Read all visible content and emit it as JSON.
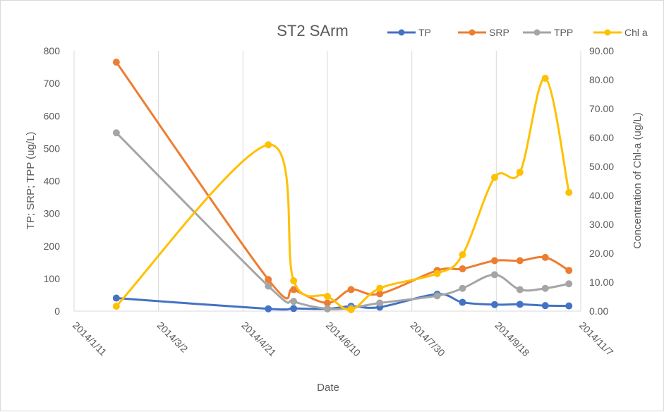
{
  "chart_data": {
    "type": "line",
    "title": "ST2 SArm",
    "xlabel": "Date",
    "ylabel": "TP; SRP; TPP (ug/L)",
    "y2label": "Concentration of Chl-a (ug/L)",
    "xlim": [
      "2014/1/11",
      "2014/11/7"
    ],
    "ylim": [
      0,
      800
    ],
    "y2lim": [
      0,
      90
    ],
    "x_ticks": [
      "2014/1/11",
      "2014/3/2",
      "2014/4/21",
      "2014/6/10",
      "2014/7/30",
      "2014/9/18",
      "2014/11/7"
    ],
    "y_ticks": [
      "0",
      "100",
      "200",
      "300",
      "400",
      "500",
      "600",
      "700",
      "800"
    ],
    "y2_ticks": [
      "0.00",
      "10.00",
      "20.00",
      "30.00",
      "40.00",
      "50.00",
      "60.00",
      "70.00",
      "80.00",
      "90.00"
    ],
    "grid": "vertical",
    "legend_position": "top-right",
    "series": [
      {
        "name": "TP",
        "color": "#4472C4",
        "axis": "left",
        "x": [
          "2014/2/5",
          "2014/5/6",
          "2014/5/21",
          "2014/6/10",
          "2014/6/24",
          "2014/7/11",
          "2014/8/14",
          "2014/8/29",
          "2014/9/17",
          "2014/10/2",
          "2014/10/17",
          "2014/10/31"
        ],
        "y": [
          40,
          7,
          8,
          7,
          15,
          12,
          52,
          27,
          20,
          21,
          17,
          16
        ]
      },
      {
        "name": "SRP",
        "color": "#ED7D31",
        "axis": "left",
        "x": [
          "2014/2/5",
          "2014/5/6",
          "2014/5/21",
          "2014/6/10",
          "2014/6/24",
          "2014/7/11",
          "2014/8/14",
          "2014/8/29",
          "2014/9/17",
          "2014/10/2",
          "2014/10/17",
          "2014/10/31"
        ],
        "y": [
          765,
          97,
          66,
          25,
          66,
          53,
          125,
          130,
          155,
          155,
          165,
          125
        ]
      },
      {
        "name": "TPP",
        "color": "#A5A5A5",
        "axis": "left",
        "x": [
          "2014/2/5",
          "2014/5/6",
          "2014/5/21",
          "2014/6/10",
          "2014/6/24",
          "2014/7/11",
          "2014/8/14",
          "2014/8/29",
          "2014/9/17",
          "2014/10/2",
          "2014/10/17",
          "2014/10/31"
        ],
        "y": [
          548,
          77,
          30,
          7,
          10,
          25,
          47,
          70,
          112,
          66,
          70,
          84
        ]
      },
      {
        "name": "Chl a",
        "color": "#FFC000",
        "axis": "right",
        "x": [
          "2014/2/5",
          "2014/5/6",
          "2014/5/21",
          "2014/6/10",
          "2014/6/24",
          "2014/7/11",
          "2014/8/14",
          "2014/8/29",
          "2014/9/17",
          "2014/10/2",
          "2014/10/17",
          "2014/10/31"
        ],
        "y": [
          1.7,
          57.5,
          10.5,
          5.1,
          0.5,
          7.9,
          13.0,
          19.5,
          46.2,
          48.0,
          80.5,
          41.0
        ]
      }
    ]
  }
}
